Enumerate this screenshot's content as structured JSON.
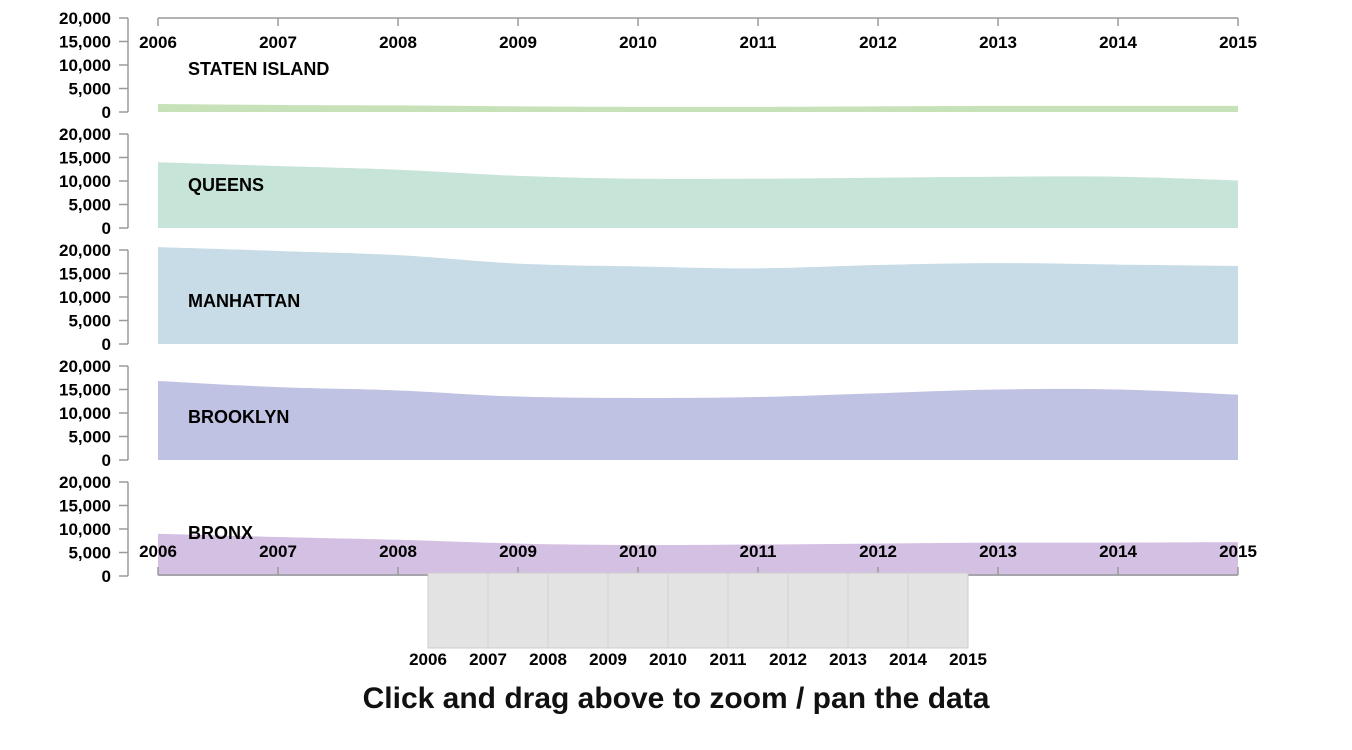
{
  "chart_data": {
    "type": "area",
    "x": [
      2006,
      2007,
      2008,
      2009,
      2010,
      2011,
      2012,
      2013,
      2014,
      2015
    ],
    "xlim": [
      2006,
      2015
    ],
    "x_ticks": [
      "2006",
      "2007",
      "2008",
      "2009",
      "2010",
      "2011",
      "2012",
      "2013",
      "2014",
      "2015"
    ],
    "ylim": [
      0,
      20000
    ],
    "y_ticks": [
      "0",
      "5,000",
      "10,000",
      "15,000",
      "20,000"
    ],
    "series": [
      {
        "name": "STATEN ISLAND",
        "color": "#c7e2b8",
        "values": [
          1700,
          1500,
          1400,
          1200,
          1100,
          1100,
          1200,
          1300,
          1300,
          1300
        ]
      },
      {
        "name": "QUEENS",
        "color": "#c6e4d8",
        "values": [
          14000,
          13200,
          12400,
          11100,
          10500,
          10500,
          10700,
          10900,
          10900,
          10100
        ]
      },
      {
        "name": "MANHATTAN",
        "color": "#c7dce6",
        "values": [
          20600,
          19800,
          18900,
          17100,
          16500,
          16100,
          16800,
          17200,
          16900,
          16600
        ]
      },
      {
        "name": "BROOKLYN",
        "color": "#bfc2e2",
        "values": [
          16800,
          15500,
          14800,
          13500,
          13200,
          13400,
          14200,
          15000,
          15000,
          13900
        ]
      },
      {
        "name": "BRONX",
        "color": "#d4c0e2",
        "values": [
          9000,
          8300,
          7700,
          6900,
          6600,
          6700,
          6900,
          7100,
          7100,
          7200
        ]
      }
    ]
  },
  "brush": {
    "ticks": [
      "2006",
      "2007",
      "2008",
      "2009",
      "2010",
      "2011",
      "2012",
      "2013",
      "2014",
      "2015"
    ],
    "selection_start": 2006,
    "selection_end": 2015
  },
  "instruction": "Click and drag above to zoom / pan the data"
}
